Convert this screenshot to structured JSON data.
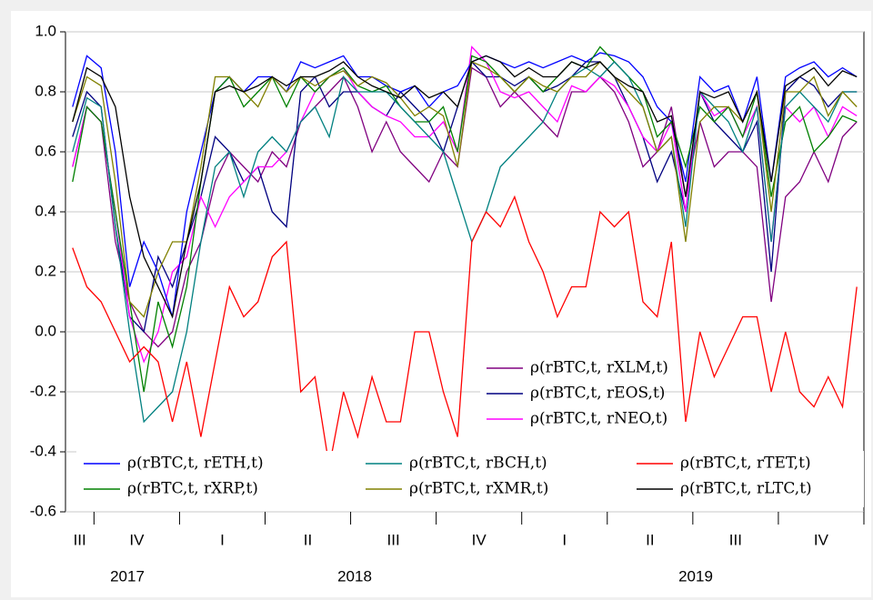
{
  "chart_data": {
    "type": "line",
    "categories": [
      "III",
      null,
      null,
      null,
      "IV",
      null,
      null,
      null,
      null,
      null,
      "I",
      null,
      null,
      null,
      null,
      null,
      "II",
      null,
      null,
      null,
      null,
      null,
      "III",
      null,
      null,
      null,
      null,
      null,
      "IV",
      null,
      null,
      null,
      null,
      null,
      "I",
      null,
      null,
      null,
      null,
      null,
      "II",
      null,
      null,
      null,
      null,
      null,
      "III",
      null,
      null,
      null,
      null,
      null,
      "IV",
      null,
      null,
      null
    ],
    "years": [
      "2017",
      "2018",
      "2019"
    ],
    "ylim": [
      -0.6,
      1.0
    ],
    "yticks": [
      -0.6,
      -0.4,
      -0.2,
      {
        "value": 0,
        "label": "0.0"
      },
      0.2,
      0.4,
      0.6,
      0.8,
      {
        "value": 1,
        "label": "1.0"
      }
    ],
    "grid": true,
    "series": [
      {
        "name": "ρ(rBTC,t, rXLM,t)",
        "color": "#800080",
        "values": [
          0.55,
          0.75,
          0.7,
          0.3,
          0.1,
          0.0,
          -0.05,
          0.0,
          0.2,
          0.3,
          0.5,
          0.6,
          0.55,
          0.5,
          0.6,
          0.55,
          0.7,
          0.75,
          0.8,
          0.85,
          0.75,
          0.6,
          0.7,
          0.6,
          0.55,
          0.5,
          0.6,
          0.55,
          0.88,
          0.85,
          0.75,
          0.8,
          0.75,
          0.7,
          0.65,
          0.8,
          0.8,
          0.85,
          0.8,
          0.7,
          0.55,
          0.6,
          0.75,
          0.45,
          0.7,
          0.55,
          0.6,
          0.6,
          0.55,
          0.1,
          0.45,
          0.5,
          0.6,
          0.5,
          0.65,
          0.7
        ]
      },
      {
        "name": "ρ(rBTC,t, rEOS,t)",
        "color": "#000080",
        "values": [
          0.65,
          0.8,
          0.75,
          0.35,
          0.05,
          0.0,
          0.25,
          0.15,
          0.3,
          0.45,
          0.65,
          0.6,
          0.5,
          0.55,
          0.4,
          0.35,
          0.8,
          0.85,
          0.75,
          0.8,
          0.8,
          0.75,
          0.72,
          0.8,
          0.75,
          0.7,
          0.6,
          0.75,
          0.9,
          0.85,
          0.85,
          0.82,
          0.85,
          0.8,
          0.82,
          0.85,
          0.9,
          0.9,
          0.85,
          0.75,
          0.65,
          0.5,
          0.6,
          0.4,
          0.8,
          0.7,
          0.65,
          0.6,
          0.7,
          0.2,
          0.8,
          0.85,
          0.82,
          0.75,
          0.8,
          0.8
        ]
      },
      {
        "name": "ρ(rBTC,t, rNEO,t)",
        "color": "#ff00ff",
        "values": [
          0.55,
          0.75,
          0.7,
          0.4,
          0.05,
          -0.1,
          0.0,
          0.2,
          0.25,
          0.45,
          0.35,
          0.45,
          0.5,
          0.55,
          0.55,
          0.6,
          0.7,
          0.8,
          0.85,
          0.88,
          0.8,
          0.75,
          0.72,
          0.7,
          0.65,
          0.65,
          0.7,
          0.6,
          0.95,
          0.9,
          0.8,
          0.78,
          0.8,
          0.75,
          0.7,
          0.82,
          0.8,
          0.85,
          0.82,
          0.75,
          0.65,
          0.6,
          0.7,
          0.4,
          0.8,
          0.72,
          0.75,
          0.65,
          0.75,
          0.3,
          0.75,
          0.7,
          0.75,
          0.65,
          0.75,
          0.72
        ]
      },
      {
        "name": "ρ(rBTC,t, rETH,t)",
        "color": "#0000ff",
        "values": [
          0.75,
          0.92,
          0.88,
          0.6,
          0.15,
          0.3,
          0.2,
          0.05,
          0.4,
          0.6,
          0.8,
          0.85,
          0.8,
          0.85,
          0.85,
          0.8,
          0.9,
          0.88,
          0.9,
          0.92,
          0.85,
          0.85,
          0.82,
          0.8,
          0.82,
          0.75,
          0.8,
          0.82,
          0.9,
          0.92,
          0.9,
          0.88,
          0.9,
          0.88,
          0.9,
          0.92,
          0.9,
          0.93,
          0.92,
          0.9,
          0.85,
          0.75,
          0.7,
          0.5,
          0.85,
          0.8,
          0.82,
          0.7,
          0.85,
          0.5,
          0.85,
          0.88,
          0.9,
          0.85,
          0.88,
          0.85
        ]
      },
      {
        "name": "ρ(rBTC,t, rXRP,t)",
        "color": "#008000",
        "values": [
          0.5,
          0.75,
          0.7,
          0.4,
          0.1,
          -0.2,
          0.1,
          -0.05,
          0.15,
          0.5,
          0.8,
          0.85,
          0.75,
          0.8,
          0.85,
          0.75,
          0.85,
          0.8,
          0.85,
          0.88,
          0.82,
          0.8,
          0.82,
          0.75,
          0.7,
          0.7,
          0.75,
          0.6,
          0.92,
          0.9,
          0.85,
          0.8,
          0.85,
          0.8,
          0.85,
          0.9,
          0.88,
          0.95,
          0.9,
          0.85,
          0.8,
          0.65,
          0.7,
          0.55,
          0.75,
          0.7,
          0.75,
          0.65,
          0.8,
          0.45,
          0.7,
          0.75,
          0.6,
          0.65,
          0.72,
          0.7
        ]
      },
      {
        "name": "ρ(rBTC,t, rBCH,t)",
        "color": "#008080",
        "values": [
          0.6,
          0.78,
          0.75,
          0.35,
          0.0,
          -0.3,
          -0.25,
          -0.2,
          0.0,
          0.3,
          0.55,
          0.6,
          0.45,
          0.6,
          0.65,
          0.6,
          0.7,
          0.75,
          0.65,
          0.85,
          0.8,
          0.8,
          0.8,
          0.75,
          0.7,
          0.65,
          0.6,
          0.45,
          0.3,
          0.4,
          0.55,
          0.6,
          0.65,
          0.7,
          0.8,
          0.85,
          0.88,
          0.85,
          0.9,
          0.85,
          0.75,
          0.6,
          0.65,
          0.35,
          0.8,
          0.75,
          0.7,
          0.6,
          0.75,
          0.3,
          0.75,
          0.8,
          0.75,
          0.7,
          0.8,
          0.8
        ]
      },
      {
        "name": "ρ(rBTC,t, rXMR,t)",
        "color": "#808000",
        "values": [
          0.7,
          0.85,
          0.82,
          0.5,
          0.1,
          0.05,
          0.2,
          0.3,
          0.3,
          0.55,
          0.85,
          0.85,
          0.8,
          0.75,
          0.85,
          0.8,
          0.85,
          0.82,
          0.85,
          0.87,
          0.82,
          0.85,
          0.83,
          0.78,
          0.72,
          0.75,
          0.72,
          0.55,
          0.9,
          0.88,
          0.85,
          0.8,
          0.85,
          0.82,
          0.8,
          0.85,
          0.85,
          0.9,
          0.85,
          0.8,
          0.75,
          0.6,
          0.65,
          0.3,
          0.7,
          0.75,
          0.75,
          0.7,
          0.8,
          0.4,
          0.8,
          0.8,
          0.85,
          0.72,
          0.8,
          0.75
        ]
      },
      {
        "name": "ρ(rBTC,t, rTET,t)",
        "color": "#ff0000",
        "values": [
          0.28,
          0.15,
          0.1,
          0.0,
          -0.1,
          -0.05,
          -0.1,
          -0.3,
          -0.1,
          -0.35,
          -0.1,
          0.15,
          0.05,
          0.1,
          0.25,
          0.3,
          -0.2,
          -0.15,
          -0.45,
          -0.2,
          -0.35,
          -0.15,
          -0.3,
          -0.3,
          0.0,
          0.0,
          -0.2,
          -0.35,
          0.3,
          0.4,
          0.35,
          0.45,
          0.3,
          0.2,
          0.05,
          0.15,
          0.15,
          0.4,
          0.35,
          0.4,
          0.1,
          0.05,
          0.3,
          -0.3,
          0.0,
          -0.15,
          -0.05,
          0.05,
          0.05,
          -0.2,
          0.0,
          -0.2,
          -0.25,
          -0.15,
          -0.25,
          0.15
        ]
      },
      {
        "name": "ρ(rBTC,t, rLTC,t)",
        "color": "#000000",
        "values": [
          0.7,
          0.88,
          0.85,
          0.75,
          0.45,
          0.25,
          0.15,
          0.05,
          0.3,
          0.5,
          0.8,
          0.82,
          0.8,
          0.82,
          0.85,
          0.82,
          0.85,
          0.85,
          0.87,
          0.9,
          0.85,
          0.82,
          0.8,
          0.78,
          0.82,
          0.78,
          0.8,
          0.75,
          0.9,
          0.92,
          0.9,
          0.85,
          0.88,
          0.85,
          0.85,
          0.9,
          0.88,
          0.9,
          0.85,
          0.82,
          0.8,
          0.7,
          0.72,
          0.45,
          0.8,
          0.78,
          0.8,
          0.7,
          0.8,
          0.5,
          0.82,
          0.85,
          0.88,
          0.82,
          0.87,
          0.85
        ]
      }
    ]
  }
}
